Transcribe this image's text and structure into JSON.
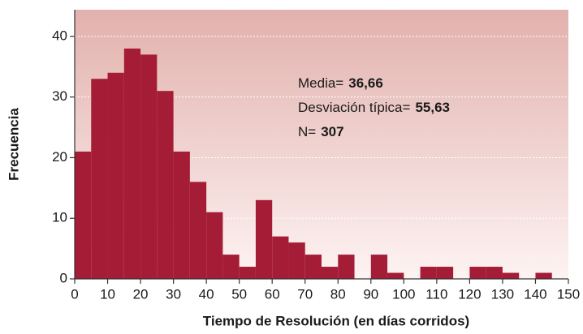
{
  "chart_data": {
    "type": "histogram",
    "xlabel": "Tiempo de Resolución (en días corridos)",
    "ylabel": "Frecuencia",
    "bins": [
      0,
      5,
      10,
      15,
      20,
      25,
      30,
      35,
      40,
      45,
      50,
      55,
      60,
      65,
      70,
      75,
      80,
      85,
      90,
      95,
      100,
      105,
      110,
      115,
      120,
      125,
      130,
      135,
      140,
      145,
      150
    ],
    "values": [
      21,
      33,
      34,
      38,
      37,
      31,
      21,
      16,
      11,
      4,
      2,
      13,
      7,
      6,
      4,
      2,
      4,
      0,
      4,
      1,
      0,
      2,
      2,
      0,
      2,
      2,
      1,
      0,
      1,
      0
    ],
    "color": "#a51c37",
    "xlim": [
      0,
      150
    ],
    "xticks": [
      0,
      10,
      20,
      30,
      40,
      50,
      60,
      70,
      80,
      90,
      100,
      110,
      120,
      130,
      140,
      150
    ],
    "ylim": [
      0,
      44.4
    ],
    "yticks": [
      0,
      10,
      20,
      30,
      40
    ],
    "grid": true,
    "annotations": [
      {
        "label": "Media=",
        "value": "36,66"
      },
      {
        "label": "Desviación típica=",
        "value": "55,63"
      },
      {
        "label": "N=",
        "value": "307"
      }
    ]
  }
}
